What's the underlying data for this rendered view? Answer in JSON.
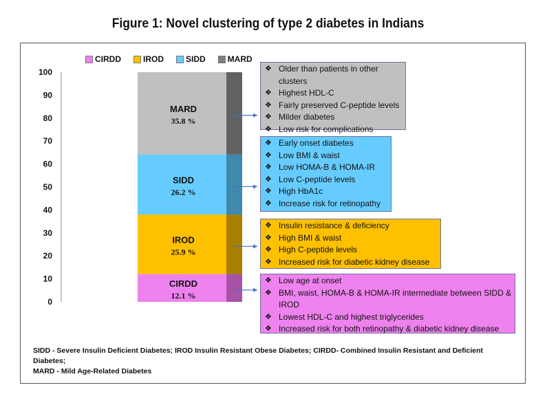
{
  "title": "Figure 1: Novel clustering of type 2 diabetes in  Indians",
  "chart_data": {
    "type": "bar",
    "stacked": true,
    "ylim": [
      0,
      100
    ],
    "yticks": [
      0,
      10,
      20,
      30,
      40,
      50,
      60,
      70,
      80,
      90,
      100
    ],
    "series": [
      {
        "name": "CIRDD",
        "value": 12.1,
        "pct_label": "12.1 %",
        "color": "#ee82ee",
        "color_dark": "#a852a8"
      },
      {
        "name": "IROD",
        "value": 25.9,
        "pct_label": "25.9 %",
        "color": "#ffc000",
        "color_dark": "#a87f00"
      },
      {
        "name": "SIDD",
        "value": 26.2,
        "pct_label": "26.2 %",
        "color": "#66ccff",
        "color_dark": "#3f89ad"
      },
      {
        "name": "MARD",
        "value": 35.8,
        "pct_label": "35.8 %",
        "color": "#c0c0c0",
        "color_dark": "#626262"
      }
    ],
    "legend": [
      "CIRDD",
      "IROD",
      "SIDD",
      "MARD"
    ]
  },
  "notes": {
    "mard": {
      "color": "#c0c0c0",
      "items": [
        "Older than patients in other clusters",
        "Highest HDL-C",
        "Fairly preserved C-peptide levels",
        "Milder diabetes",
        "Low risk for complications"
      ]
    },
    "sidd": {
      "color": "#66ccff",
      "items": [
        "Early onset diabetes",
        "Low BMI & waist",
        "Low HOMA-B & HOMA-IR",
        "Low C-peptide levels",
        "High HbA1c",
        "Increase risk for retinopathy"
      ]
    },
    "irod": {
      "color": "#ffc000",
      "items": [
        "Insulin resistance & deficiency",
        "High BMI & waist",
        "High C-peptide levels",
        "Increased risk for diabetic kidney disease"
      ]
    },
    "cirdd": {
      "color": "#ee82ee",
      "items": [
        "Low age at onset",
        "BMI, waist, HOMA-B & HOMA-IR intermediate between SIDD & IROD",
        "Lowest HDL-C and highest triglycerides",
        "Increased risk for both retinopathy & diabetic kidney disease"
      ]
    }
  },
  "footnote": {
    "line1": "SIDD - Severe Insulin Deficient Diabetes; IROD Insulin Resistant Obese Diabetes; CIRDD- Combined Insulin Resistant and Deficient Diabetes;",
    "line2": "MARD - Mild Age-Related Diabetes"
  }
}
